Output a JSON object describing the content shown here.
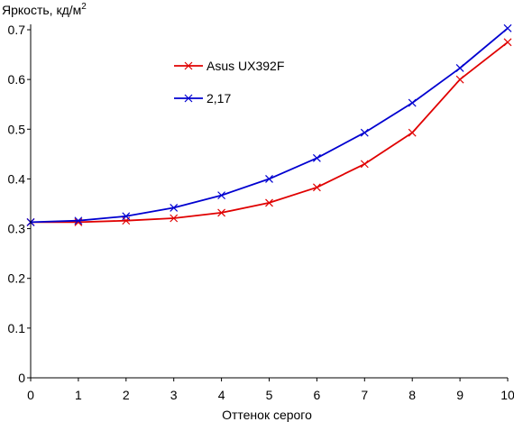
{
  "chart_data": {
    "type": "line",
    "title": "",
    "ylabel": "Яркость, кд/м",
    "ylabel_sup": "2",
    "xlabel": "Оттенок серого",
    "xlim": [
      0,
      10
    ],
    "ylim": [
      0,
      0.7
    ],
    "x": [
      0,
      1,
      2,
      3,
      4,
      5,
      6,
      7,
      8,
      9,
      10
    ],
    "x_ticks": [
      "0",
      "1",
      "2",
      "3",
      "4",
      "5",
      "6",
      "7",
      "8",
      "9",
      "10"
    ],
    "y_ticks": [
      "0",
      "0.1",
      "0.2",
      "0.3",
      "0.4",
      "0.5",
      "0.6",
      "0.7"
    ],
    "grid": false,
    "legend_position": "top-center",
    "series": [
      {
        "name": "Asus UX392F",
        "color": "#e00000",
        "marker": "x",
        "values": [
          0.313,
          0.313,
          0.316,
          0.321,
          0.332,
          0.352,
          0.383,
          0.43,
          0.493,
          0.6,
          0.675
        ]
      },
      {
        "name": "2,17",
        "color": "#0000d0",
        "marker": "x",
        "values": [
          0.313,
          0.316,
          0.325,
          0.342,
          0.367,
          0.4,
          0.442,
          0.493,
          0.553,
          0.623,
          0.703
        ]
      }
    ]
  }
}
